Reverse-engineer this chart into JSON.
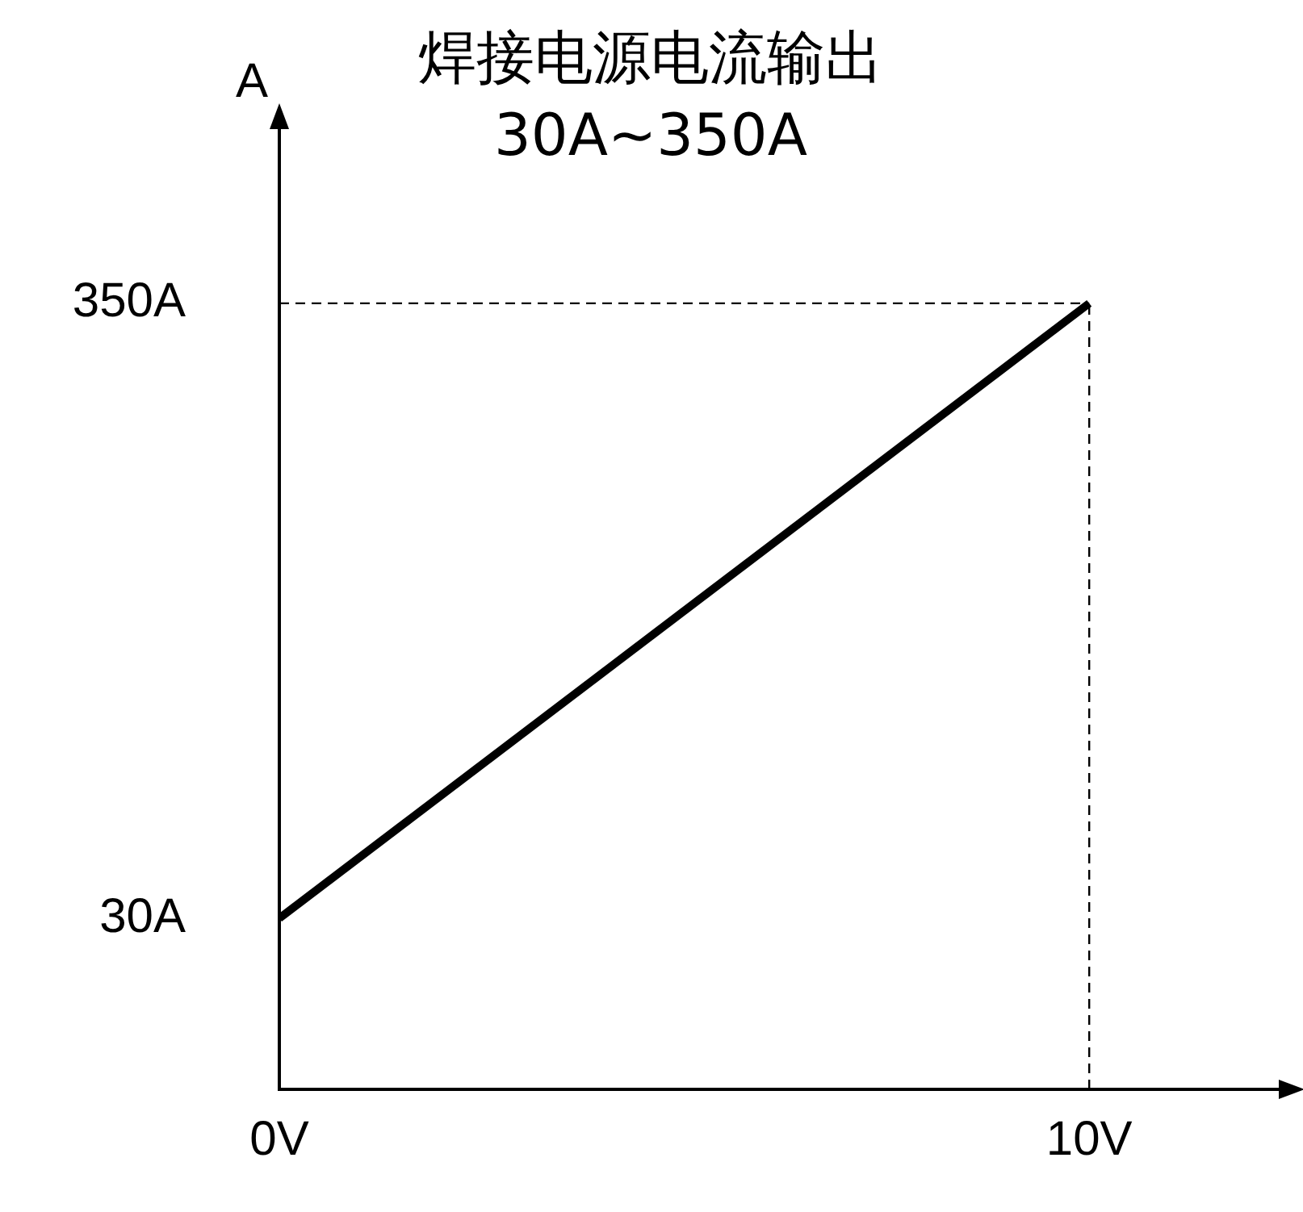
{
  "chart_data": {
    "type": "line",
    "title": "焊接电源电流输出",
    "subtitle": "30A~350A",
    "ylabel": "A",
    "x": [
      0,
      10
    ],
    "series": [
      {
        "color": "#000000",
        "values": [
          30,
          350
        ]
      }
    ],
    "xlim": [
      0,
      12.5
    ],
    "ylim": [
      -59,
      444
    ],
    "xticks": [
      {
        "value": 0,
        "label": "0V"
      },
      {
        "value": 10,
        "label": "10V"
      }
    ],
    "yticks": [
      {
        "value": 30,
        "label": "30A"
      },
      {
        "value": 350,
        "label": "350A"
      }
    ],
    "ref_lines": [
      {
        "axis": "y",
        "value": 350,
        "line_style": "dashed",
        "color": "#000000"
      },
      {
        "axis": "x",
        "value": 10,
        "line_style": "dashed",
        "color": "#000000"
      }
    ],
    "grid": false,
    "legend": false,
    "marker": "none",
    "line_style": "solid"
  }
}
